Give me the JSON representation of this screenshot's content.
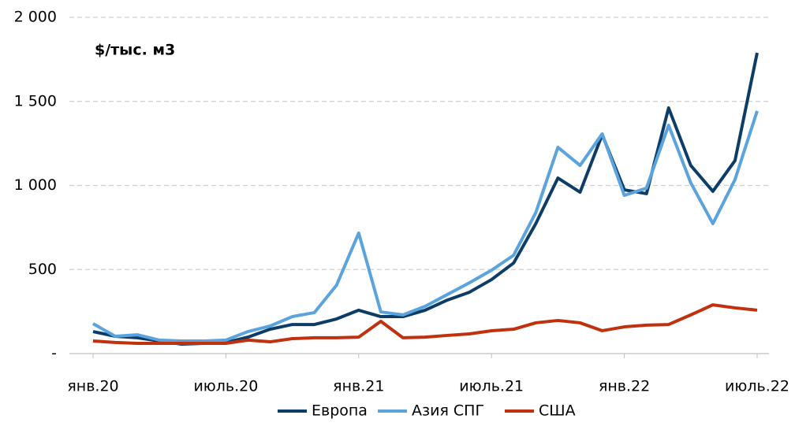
{
  "chart_data": {
    "type": "line",
    "annotation": "$/тыс. м3",
    "categories": [
      "янв.20",
      null,
      null,
      null,
      null,
      null,
      "июль.20",
      null,
      null,
      null,
      null,
      null,
      "янв.21",
      null,
      null,
      null,
      null,
      null,
      "июль.21",
      null,
      null,
      null,
      null,
      null,
      "янв.22",
      null,
      null,
      null,
      null,
      null,
      "июль.22"
    ],
    "series": [
      {
        "name": "Европа",
        "color": "#0d3d66",
        "values": [
          131,
          103,
          94,
          75,
          56,
          61,
          66,
          98,
          145,
          173,
          173,
          206,
          258,
          220,
          220,
          258,
          318,
          365,
          440,
          539,
          773,
          1044,
          960,
          1302,
          974,
          951,
          1461,
          1119,
          965,
          1148,
          1789
        ]
      },
      {
        "name": "Азия СПГ",
        "color": "#5ba3dc",
        "values": [
          178,
          103,
          112,
          80,
          75,
          75,
          80,
          131,
          164,
          220,
          244,
          407,
          717,
          248,
          230,
          281,
          351,
          421,
          496,
          585,
          838,
          1227,
          1119,
          1307,
          941,
          984,
          1358,
          1016,
          773,
          1035,
          1443
        ]
      },
      {
        "name": "США",
        "color": "#c0310f",
        "values": [
          75,
          66,
          61,
          61,
          61,
          61,
          61,
          80,
          70,
          89,
          94,
          94,
          98,
          192,
          94,
          98,
          108,
          117,
          136,
          145,
          183,
          197,
          183,
          136,
          159,
          169,
          173,
          230,
          290,
          272,
          258
        ]
      }
    ],
    "ylim": [
      0,
      2000
    ],
    "yticks": [
      {
        "value": 0,
        "label": "-"
      },
      500,
      {
        "value": 1000,
        "label": "1 000"
      },
      {
        "value": 1500,
        "label": "1 500"
      },
      {
        "value": 2000,
        "label": "2 000"
      }
    ],
    "grid": true,
    "legend": "bottom"
  }
}
